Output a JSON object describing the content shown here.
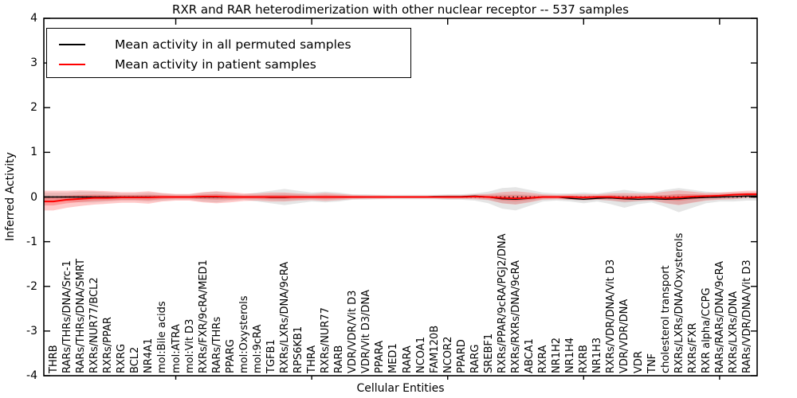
{
  "title": "RXR and RAR heterodimerization with other nuclear receptor -- 537 samples",
  "xlabel": "Cellular Entities",
  "ylabel": "Inferred Activity",
  "legend": {
    "items": [
      {
        "label": "Mean activity in all permuted samples",
        "color": "#000000"
      },
      {
        "label": "Mean activity in patient samples",
        "color": "#ff0000"
      }
    ]
  },
  "chart_data": {
    "type": "line",
    "title": "RXR and RAR heterodimerization with other nuclear receptor -- 537 samples",
    "xlabel": "Cellular Entities",
    "ylabel": "Inferred Activity",
    "ylim": [
      -4,
      4
    ],
    "yticks": [
      "4",
      "3",
      "2",
      "1",
      "0",
      "-1",
      "-2",
      "-3",
      "-4"
    ],
    "ytick_values": [
      4,
      3,
      2,
      1,
      0,
      -1,
      -2,
      -3,
      -4
    ],
    "xtick_indices": [
      9,
      19,
      29,
      39,
      49
    ],
    "zero_line": true,
    "grid": false,
    "legend_position": "upper left",
    "categories": [
      "THRB",
      "RARs/THRs/DNA/Src-1",
      "RARs/THRs/DNA/SMRT",
      "RXRs/NUR77/BCL2",
      "RXRs/PPAR",
      "RXRG",
      "BCL2",
      "NR4A1",
      "mol:Bile acids",
      "mol:ATRA",
      "mol:Vit D3",
      "RXRs/FXR/9cRA/MED1",
      "RARs/THRs",
      "PPARG",
      "mol:Oxysterols",
      "mol:9cRA",
      "TGFB1",
      "RXRs/LXRs/DNA/9cRA",
      "RPS6KB1",
      "THRA",
      "RXRs/NUR77",
      "RARB",
      "VDR/VDR/Vit D3",
      "VDR/Vit D3/DNA",
      "PPARA",
      "MED1",
      "RARA",
      "NCOA1",
      "FAM120B",
      "NCOR2",
      "PPARD",
      "RARG",
      "SREBF1",
      "RXRs/PPAR/9cRA/PGJ2/DNA",
      "RXRs/RXRs/DNA/9cRA",
      "ABCA1",
      "RXRA",
      "NR1H2",
      "NR1H4",
      "RXRB",
      "NR1H3",
      "RXRs/VDR/DNA/Vit D3",
      "VDR/VDR/DNA",
      "VDR",
      "TNF",
      "cholesterol transport",
      "RXRs/LXRs/DNA/Oxysterols",
      "RXRs/FXR",
      "RXR alpha/CCPG",
      "RARs/RARs/DNA/9cRA",
      "RXRs/LXRs/DNA",
      "RARs/VDR/DNA/Vit D3"
    ],
    "series": [
      {
        "name": "Mean activity in all permuted samples",
        "color": "#000000",
        "band_color": "#a8a8a8",
        "mean": [
          0,
          0,
          0,
          0,
          0,
          0,
          0,
          0,
          0,
          0,
          0,
          0,
          0,
          0,
          0,
          0,
          -0.01,
          -0.01,
          0,
          0,
          0,
          0,
          0,
          0,
          0,
          0,
          0,
          0,
          0.01,
          0.01,
          0.01,
          0.02,
          0,
          -0.04,
          -0.05,
          -0.03,
          0,
          0,
          -0.03,
          -0.05,
          -0.03,
          -0.02,
          -0.04,
          -0.05,
          -0.04,
          -0.05,
          -0.04,
          -0.02,
          -0.01,
          0,
          0.01,
          0.02
        ],
        "upper": [
          0.1,
          0.1,
          0.12,
          0.12,
          0.1,
          0.08,
          0.08,
          0.1,
          0.08,
          0.06,
          0.06,
          0.1,
          0.12,
          0.08,
          0.06,
          0.1,
          0.14,
          0.18,
          0.14,
          0.1,
          0.12,
          0.1,
          0.06,
          0.06,
          0.05,
          0.05,
          0.05,
          0.05,
          0.05,
          0.06,
          0.06,
          0.08,
          0.12,
          0.2,
          0.22,
          0.16,
          0.1,
          0.08,
          0.08,
          0.1,
          0.08,
          0.12,
          0.16,
          0.12,
          0.1,
          0.16,
          0.2,
          0.16,
          0.12,
          0.1,
          0.1,
          0.1
        ],
        "lower": [
          -0.1,
          -0.1,
          -0.12,
          -0.12,
          -0.1,
          -0.08,
          -0.08,
          -0.1,
          -0.08,
          -0.06,
          -0.06,
          -0.1,
          -0.12,
          -0.08,
          -0.06,
          -0.1,
          -0.14,
          -0.18,
          -0.14,
          -0.1,
          -0.12,
          -0.1,
          -0.06,
          -0.06,
          -0.05,
          -0.05,
          -0.05,
          -0.05,
          -0.05,
          -0.06,
          -0.06,
          -0.08,
          -0.14,
          -0.26,
          -0.3,
          -0.2,
          -0.1,
          -0.08,
          -0.1,
          -0.14,
          -0.1,
          -0.16,
          -0.24,
          -0.16,
          -0.12,
          -0.22,
          -0.34,
          -0.24,
          -0.14,
          -0.1,
          -0.1,
          -0.08
        ]
      },
      {
        "name": "Mean activity in patient samples",
        "color": "#ff0000",
        "band_color": "#ff4040",
        "mean": [
          -0.1,
          -0.06,
          -0.04,
          -0.02,
          -0.02,
          -0.01,
          -0.01,
          -0.01,
          0,
          0,
          0,
          0.01,
          0.01,
          0,
          0,
          0,
          0,
          0,
          0,
          0,
          0,
          0,
          0,
          0,
          0,
          0,
          0,
          0,
          0,
          0,
          0,
          0.01,
          0,
          -0.02,
          -0.03,
          -0.02,
          0,
          0,
          0,
          -0.01,
          0,
          0,
          -0.02,
          -0.01,
          0,
          -0.02,
          -0.01,
          0.01,
          0.02,
          0.03,
          0.05,
          0.06
        ],
        "upper": [
          0.14,
          0.14,
          0.15,
          0.14,
          0.13,
          0.11,
          0.11,
          0.13,
          0.09,
          0.07,
          0.07,
          0.11,
          0.13,
          0.11,
          0.08,
          0.08,
          0.1,
          0.1,
          0.08,
          0.07,
          0.09,
          0.07,
          0.05,
          0.04,
          0.04,
          0.03,
          0.03,
          0.03,
          0.03,
          0.04,
          0.04,
          0.06,
          0.07,
          0.11,
          0.13,
          0.1,
          0.06,
          0.05,
          0.06,
          0.06,
          0.06,
          0.08,
          0.09,
          0.08,
          0.08,
          0.12,
          0.15,
          0.12,
          0.09,
          0.1,
          0.12,
          0.14
        ],
        "lower": [
          -0.3,
          -0.24,
          -0.2,
          -0.17,
          -0.15,
          -0.13,
          -0.13,
          -0.15,
          -0.1,
          -0.08,
          -0.08,
          -0.12,
          -0.14,
          -0.12,
          -0.09,
          -0.08,
          -0.1,
          -0.1,
          -0.08,
          -0.07,
          -0.09,
          -0.07,
          -0.05,
          -0.04,
          -0.04,
          -0.03,
          -0.03,
          -0.03,
          -0.03,
          -0.04,
          -0.04,
          -0.05,
          -0.07,
          -0.14,
          -0.17,
          -0.12,
          -0.06,
          -0.05,
          -0.06,
          -0.07,
          -0.06,
          -0.08,
          -0.11,
          -0.09,
          -0.08,
          -0.14,
          -0.18,
          -0.13,
          -0.08,
          -0.06,
          -0.05,
          -0.02
        ]
      }
    ]
  }
}
